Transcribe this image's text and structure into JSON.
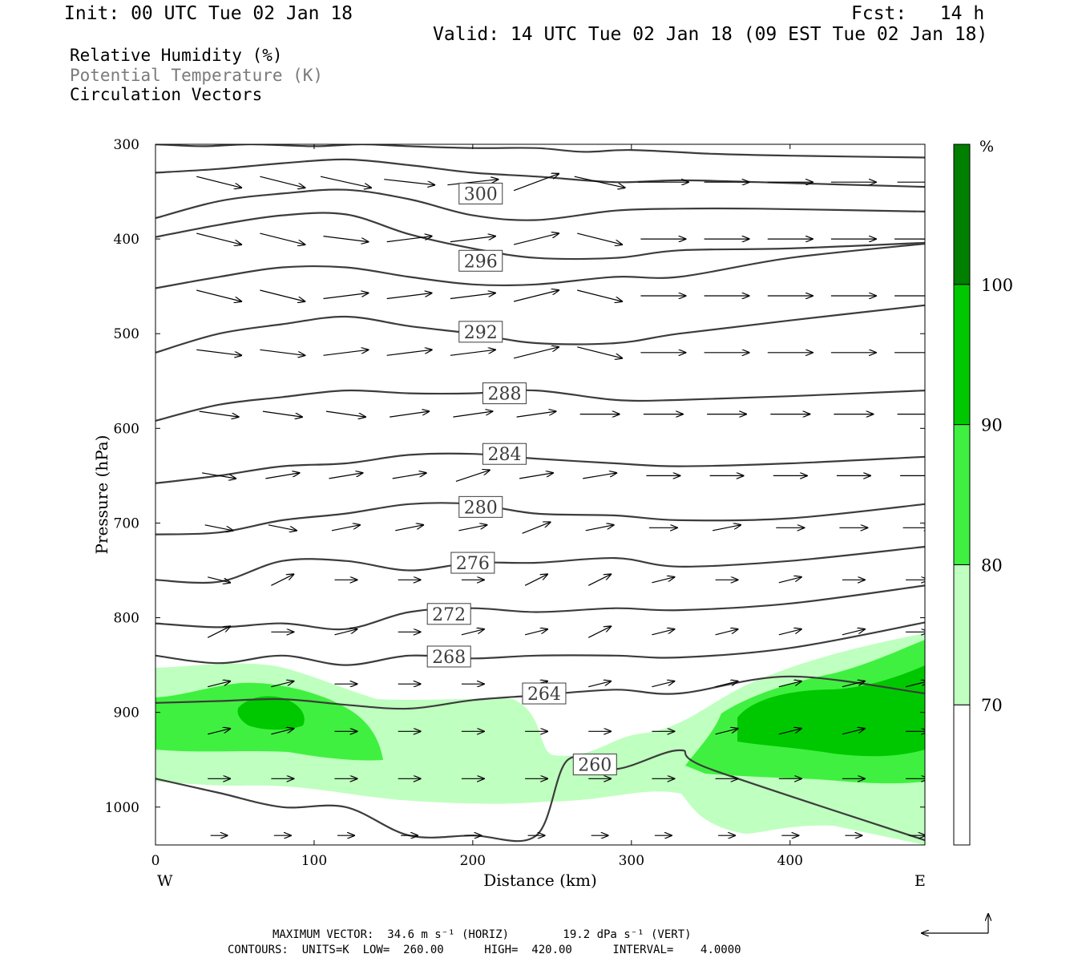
{
  "header": {
    "init": "Init: 00 UTC Tue 02 Jan 18",
    "fcst": "Fcst:   14 h",
    "valid": "Valid: 14 UTC Tue 02 Jan 18 (09 EST Tue 02 Jan 18)"
  },
  "legend": {
    "rh": "Relative Humidity (%)",
    "theta": "Potential Temperature (K)",
    "vectors": "Circulation Vectors",
    "theta_color": "#7a7a7a"
  },
  "footer": {
    "max_vector": "MAXIMUM VECTOR:  34.6 m s⁻¹ (HORIZ)        19.2 dPa s⁻¹ (VERT)",
    "contours": "CONTOURS:  UNITS=K  LOW=  260.00      HIGH=  420.00      INTERVAL=    4.0000"
  },
  "chart_data": {
    "type": "cross-section",
    "xlabel": "Distance (km)",
    "ylabel": "Pressure (hPa)",
    "x_ticks": [
      0,
      100,
      200,
      300,
      400
    ],
    "y_ticks": [
      300,
      400,
      500,
      600,
      700,
      800,
      900,
      1000
    ],
    "xlim": [
      0,
      485
    ],
    "ylim": [
      300,
      1040
    ],
    "y_reversed": true,
    "left_end_label": "W",
    "right_end_label": "E",
    "colorbar": {
      "unit": "%",
      "levels": [
        70,
        80,
        90,
        100
      ],
      "colors": [
        "#ffffff",
        "#bfffbf",
        "#40f040",
        "#00c800",
        "#007f00"
      ]
    },
    "isentropes": [
      {
        "label": "300",
        "x": [
          0,
          30,
          60,
          100,
          130,
          160,
          200,
          240,
          270,
          300,
          350,
          400,
          485
        ],
        "y": [
          300,
          302,
          300,
          302,
          300,
          302,
          304,
          304,
          308,
          306,
          310,
          312,
          314
        ]
      },
      {
        "label": "",
        "x": [
          0,
          40,
          80,
          120,
          160,
          200,
          240,
          290,
          330,
          380,
          485
        ],
        "y": [
          330,
          326,
          320,
          316,
          322,
          330,
          334,
          340,
          338,
          340,
          345
        ]
      },
      {
        "label": "",
        "x": [
          0,
          40,
          80,
          120,
          160,
          200,
          240,
          290,
          330,
          380,
          485
        ],
        "y": [
          378,
          360,
          352,
          348,
          358,
          375,
          380,
          370,
          368,
          368,
          371
        ]
      },
      {
        "label": "300",
        "x": [
          0,
          40,
          80,
          120,
          160,
          200,
          240,
          290,
          330,
          400,
          485
        ],
        "y": [
          398,
          385,
          375,
          374,
          395,
          410,
          420,
          420,
          412,
          410,
          404
        ]
      },
      {
        "label": "296",
        "x": [
          0,
          40,
          80,
          120,
          160,
          200,
          240,
          290,
          330,
          400,
          485
        ],
        "y": [
          452,
          440,
          430,
          430,
          440,
          448,
          448,
          440,
          440,
          420,
          405
        ]
      },
      {
        "label": "292",
        "x": [
          0,
          40,
          80,
          120,
          160,
          200,
          240,
          290,
          330,
          400,
          485
        ],
        "y": [
          520,
          500,
          490,
          482,
          492,
          500,
          510,
          510,
          500,
          486,
          470
        ]
      },
      {
        "label": "288",
        "x": [
          0,
          40,
          80,
          120,
          160,
          200,
          240,
          290,
          330,
          400,
          485
        ],
        "y": [
          592,
          575,
          567,
          560,
          563,
          563,
          560,
          570,
          570,
          566,
          560
        ]
      },
      {
        "label": "284",
        "x": [
          0,
          40,
          80,
          120,
          160,
          200,
          240,
          290,
          330,
          400,
          485
        ],
        "y": [
          658,
          650,
          640,
          637,
          628,
          627,
          632,
          637,
          640,
          637,
          630
        ]
      },
      {
        "label": "280",
        "x": [
          0,
          40,
          80,
          120,
          160,
          200,
          240,
          290,
          330,
          400,
          485
        ],
        "y": [
          712,
          710,
          697,
          690,
          680,
          680,
          690,
          692,
          697,
          695,
          680
        ]
      },
      {
        "label": "276",
        "x": [
          0,
          40,
          80,
          120,
          160,
          200,
          240,
          290,
          330,
          400,
          485
        ],
        "y": [
          760,
          762,
          740,
          740,
          750,
          742,
          742,
          737,
          746,
          740,
          725
        ]
      },
      {
        "label": "272",
        "x": [
          0,
          40,
          80,
          120,
          160,
          200,
          240,
          290,
          330,
          400,
          485
        ],
        "y": [
          806,
          810,
          806,
          812,
          794,
          790,
          794,
          790,
          792,
          785,
          766
        ]
      },
      {
        "label": "268",
        "x": [
          0,
          40,
          80,
          120,
          160,
          200,
          240,
          290,
          330,
          400,
          485
        ],
        "y": [
          840,
          848,
          840,
          850,
          840,
          843,
          840,
          840,
          842,
          832,
          805
        ]
      },
      {
        "label": "264",
        "x": [
          0,
          40,
          80,
          120,
          160,
          200,
          240,
          290,
          330,
          400,
          485
        ],
        "y": [
          890,
          888,
          886,
          892,
          896,
          887,
          882,
          876,
          880,
          862,
          880
        ]
      },
      {
        "label": "260",
        "x": [
          0,
          40,
          80,
          120,
          160,
          200,
          240,
          260,
          290,
          330,
          350,
          485
        ],
        "y": [
          970,
          985,
          1000,
          1000,
          1030,
          1030,
          1030,
          950,
          960,
          940,
          960,
          1035
        ]
      }
    ],
    "vectors": {
      "rows_p": [
        340,
        400,
        460,
        520,
        585,
        650,
        705,
        760,
        815,
        870,
        920,
        970,
        1030
      ],
      "cols_x": [
        40,
        80,
        120,
        160,
        200,
        240,
        280,
        320,
        360,
        400,
        440,
        480
      ],
      "u": [
        [
          8,
          8,
          9,
          9,
          9,
          8,
          9,
          9,
          8,
          8,
          8,
          7
        ],
        [
          8,
          8,
          8,
          8,
          8,
          8,
          8,
          8,
          8,
          8,
          8,
          8
        ],
        [
          8,
          8,
          8,
          8,
          8,
          8,
          8,
          8,
          8,
          8,
          8,
          8
        ],
        [
          8,
          8,
          8,
          8,
          8,
          8,
          8,
          8,
          8,
          8,
          8,
          8
        ],
        [
          7,
          7,
          7,
          7,
          7,
          7,
          7,
          7,
          7,
          7,
          7,
          7
        ],
        [
          6,
          6,
          6,
          6,
          6,
          6,
          6,
          6,
          6,
          6,
          6,
          6
        ],
        [
          5,
          5,
          5,
          5,
          5,
          5,
          5,
          5,
          5,
          5,
          5,
          5
        ],
        [
          4,
          4,
          4,
          4,
          4,
          4,
          4,
          4,
          4,
          4,
          4,
          4
        ],
        [
          4,
          4,
          4,
          4,
          4,
          4,
          4,
          4,
          4,
          4,
          4,
          4
        ],
        [
          4,
          4,
          4,
          4,
          4,
          4,
          4,
          4,
          4,
          4,
          4,
          4
        ],
        [
          4,
          4,
          4,
          4,
          4,
          4,
          4,
          4,
          4,
          4,
          4,
          4
        ],
        [
          4,
          4,
          4,
          4,
          4,
          4,
          4,
          4,
          4,
          4,
          4,
          4
        ],
        [
          3,
          3,
          3,
          3,
          3,
          3,
          3,
          3,
          3,
          3,
          3,
          3
        ]
      ],
      "w": [
        [
          -2,
          -2,
          -2,
          -1,
          1,
          3,
          -2,
          0,
          0,
          0,
          0,
          0
        ],
        [
          -2,
          -2,
          -1,
          1,
          1,
          2,
          -2,
          0,
          0,
          0,
          0,
          0
        ],
        [
          -2,
          -2,
          1,
          1,
          1,
          2,
          -2,
          0,
          0,
          0,
          0,
          0
        ],
        [
          -1,
          -1,
          1,
          1,
          1,
          2,
          -2,
          0,
          0,
          0,
          0,
          0
        ],
        [
          -1,
          -1,
          -1,
          1,
          1,
          1,
          0,
          0,
          0,
          0,
          0,
          0
        ],
        [
          -1,
          1,
          1,
          1,
          2,
          1,
          1,
          0,
          0,
          0,
          0,
          0
        ],
        [
          -1,
          -1,
          1,
          1,
          1,
          2,
          1,
          0,
          1,
          0,
          0,
          0
        ],
        [
          -1,
          2,
          0,
          0,
          0,
          2,
          2,
          1,
          0,
          1,
          0,
          0
        ],
        [
          2,
          0,
          1,
          0,
          1,
          1,
          2,
          1,
          1,
          1,
          1,
          0
        ],
        [
          1,
          1,
          0,
          0,
          0,
          1,
          1,
          1,
          1,
          1,
          1,
          1
        ],
        [
          1,
          1,
          0,
          0,
          0,
          0,
          0,
          0,
          1,
          1,
          1,
          0
        ],
        [
          0,
          0,
          0,
          0,
          0,
          0,
          0,
          0,
          0,
          0,
          0,
          0
        ],
        [
          0,
          0,
          0,
          0,
          0,
          0,
          0,
          0,
          0,
          0,
          0,
          0
        ]
      ]
    }
  }
}
